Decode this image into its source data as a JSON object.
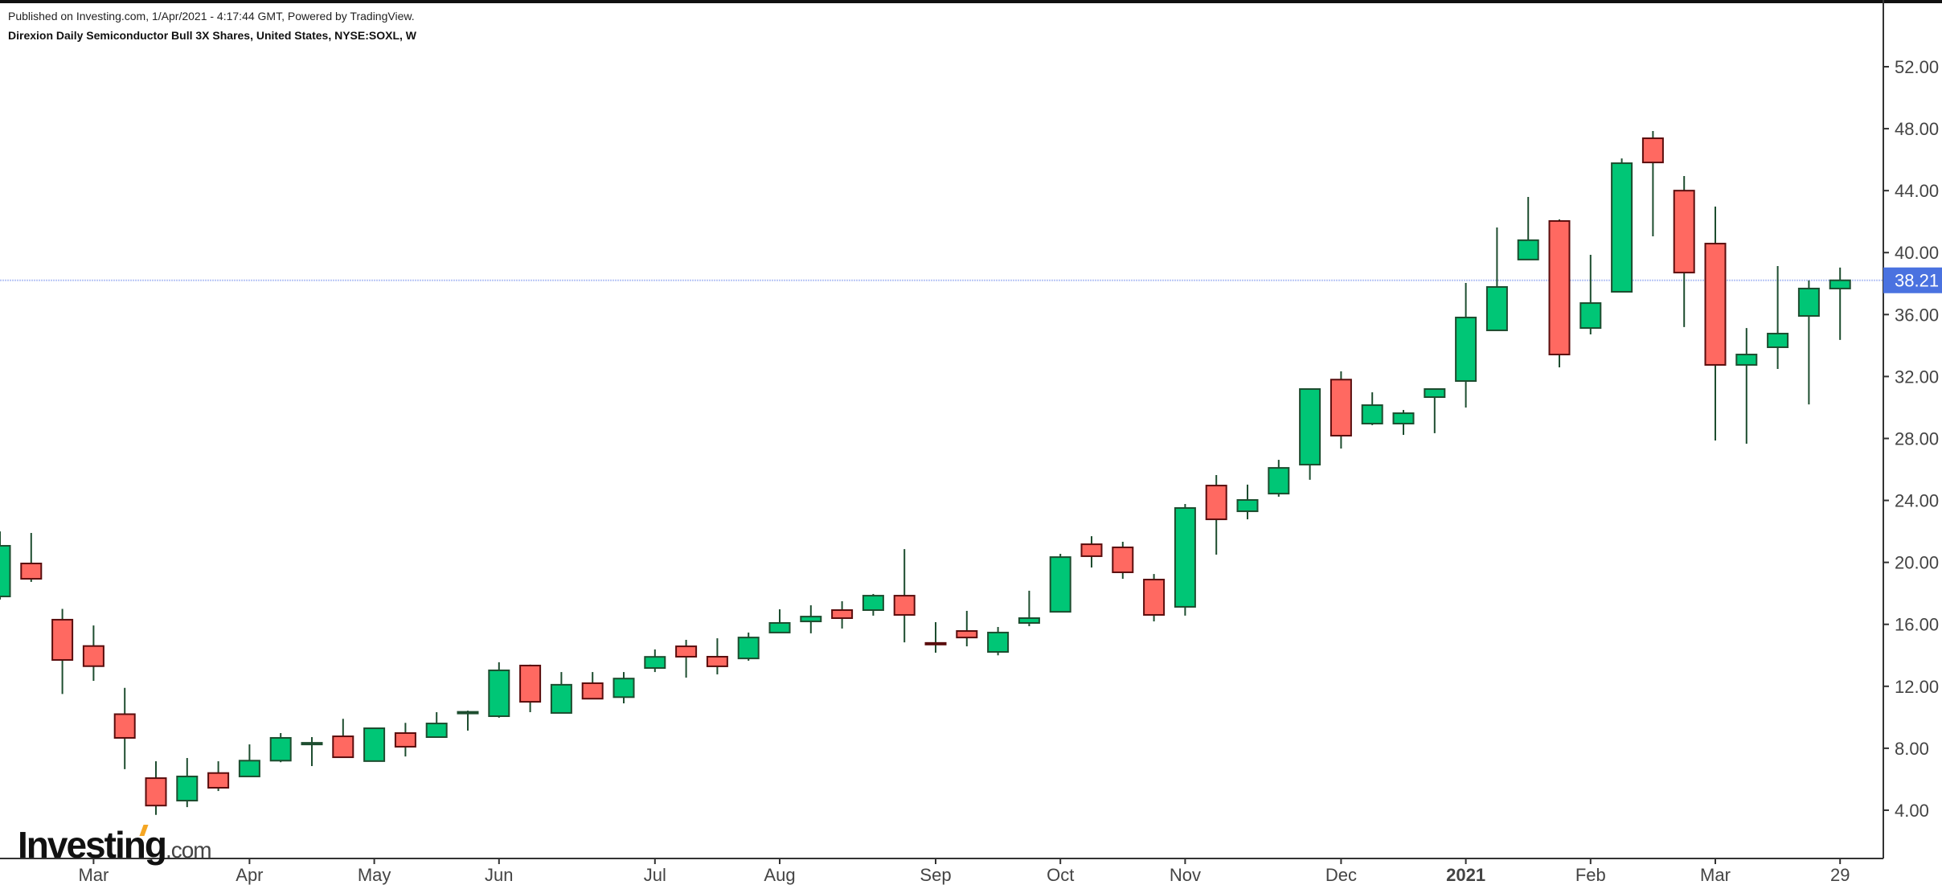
{
  "header": {
    "published": "Published on Investing.com, 1/Apr/2021 - 4:17:44 GMT, Powered by TradingView.",
    "title": "Direxion Daily Semiconductor Bull 3X Shares, United States, NYSE:SOXL, W"
  },
  "logo": {
    "main": "Investing",
    "suffix": ".com"
  },
  "colors": {
    "up": "#00c676",
    "down": "#ff6961",
    "up_border": "#1d4d2f",
    "down_border": "#5a0d0d",
    "price_tag": "#4a72e0",
    "price_line": "#b8c6f5"
  },
  "chart_data": {
    "type": "candlestick",
    "title": "Direxion Daily Semiconductor Bull 3X Shares, United States, NYSE:SOXL, W",
    "interval": "weekly",
    "ylim": [
      0.8,
      54.5
    ],
    "yticks": [
      "4.00",
      "8.00",
      "12.00",
      "16.00",
      "20.00",
      "24.00",
      "28.00",
      "32.00",
      "36.00",
      "40.00",
      "44.00",
      "48.00",
      "52.00"
    ],
    "ytick_values": [
      4,
      8,
      12,
      16,
      20,
      24,
      28,
      32,
      36,
      40,
      44,
      48,
      52
    ],
    "xticks": [
      {
        "label": "Mar",
        "index": 3
      },
      {
        "label": "Apr",
        "index": 8
      },
      {
        "label": "May",
        "index": 12
      },
      {
        "label": "Jun",
        "index": 16
      },
      {
        "label": "Jul",
        "index": 21
      },
      {
        "label": "Aug",
        "index": 25
      },
      {
        "label": "Sep",
        "index": 30
      },
      {
        "label": "Oct",
        "index": 34
      },
      {
        "label": "Nov",
        "index": 38
      },
      {
        "label": "Dec",
        "index": 43
      },
      {
        "label": "2021",
        "index": 47,
        "bold": true
      },
      {
        "label": "Feb",
        "index": 51
      },
      {
        "label": "Mar",
        "index": 55
      },
      {
        "label": "29",
        "index": 59
      }
    ],
    "last_price": 38.21,
    "last_price_label": "38.21",
    "ohlc_fields": [
      "open",
      "high",
      "low",
      "close"
    ],
    "ohlc": [
      [
        17.8,
        22.0,
        17.6,
        21.07
      ],
      [
        19.93,
        21.9,
        18.74,
        18.94
      ],
      [
        16.3,
        17.0,
        11.5,
        13.7
      ],
      [
        14.6,
        15.93,
        12.35,
        13.3
      ],
      [
        10.2,
        11.9,
        6.65,
        8.67
      ],
      [
        6.07,
        7.16,
        3.7,
        4.3
      ],
      [
        4.62,
        7.37,
        4.2,
        6.18
      ],
      [
        6.4,
        7.16,
        5.24,
        5.45
      ],
      [
        6.18,
        8.25,
        6.18,
        7.2
      ],
      [
        7.2,
        8.98,
        7.1,
        8.67
      ],
      [
        8.25,
        8.72,
        6.85,
        8.35
      ],
      [
        8.77,
        9.9,
        7.42,
        7.42
      ],
      [
        7.17,
        9.29,
        7.17,
        9.29
      ],
      [
        8.98,
        9.64,
        7.47,
        8.1
      ],
      [
        8.72,
        10.33,
        8.72,
        9.6
      ],
      [
        10.3,
        10.43,
        9.14,
        10.35
      ],
      [
        10.07,
        13.55,
        9.97,
        13.03
      ],
      [
        13.34,
        13.4,
        10.33,
        11.0
      ],
      [
        10.28,
        12.92,
        10.28,
        12.1
      ],
      [
        12.2,
        12.92,
        11.2,
        11.2
      ],
      [
        11.3,
        12.92,
        10.9,
        12.5
      ],
      [
        13.18,
        14.38,
        12.92,
        13.9
      ],
      [
        14.58,
        15.0,
        12.56,
        13.91
      ],
      [
        13.91,
        15.1,
        12.77,
        13.29
      ],
      [
        13.8,
        15.47,
        13.65,
        15.15
      ],
      [
        15.47,
        16.97,
        15.47,
        16.09
      ],
      [
        16.19,
        17.23,
        15.42,
        16.5
      ],
      [
        16.92,
        17.49,
        15.73,
        16.4
      ],
      [
        16.92,
        17.96,
        16.56,
        17.85
      ],
      [
        17.85,
        20.86,
        14.84,
        16.61
      ],
      [
        14.8,
        16.14,
        14.17,
        14.7
      ],
      [
        15.57,
        16.87,
        14.58,
        15.15
      ],
      [
        14.22,
        15.83,
        14.0,
        15.47
      ],
      [
        16.09,
        18.17,
        15.88,
        16.4
      ],
      [
        16.81,
        20.55,
        16.81,
        20.34
      ],
      [
        21.17,
        21.69,
        19.67,
        20.4
      ],
      [
        20.97,
        21.33,
        18.94,
        19.36
      ],
      [
        18.89,
        19.25,
        16.19,
        16.61
      ],
      [
        17.13,
        23.77,
        16.56,
        23.51
      ],
      [
        24.96,
        25.64,
        20.5,
        22.78
      ],
      [
        23.3,
        25.02,
        22.78,
        24.03
      ],
      [
        24.44,
        26.62,
        24.24,
        26.1
      ],
      [
        26.31,
        31.2,
        25.33,
        31.19
      ],
      [
        31.8,
        32.33,
        27.35,
        28.18
      ],
      [
        28.96,
        30.98,
        28.86,
        30.15
      ],
      [
        28.96,
        29.84,
        28.23,
        29.63
      ],
      [
        30.67,
        31.2,
        28.34,
        31.19
      ],
      [
        31.71,
        38.04,
        30.0,
        35.81
      ],
      [
        34.98,
        41.62,
        34.98,
        37.78
      ],
      [
        39.55,
        43.59,
        39.55,
        40.8
      ],
      [
        42.04,
        42.14,
        32.59,
        33.42
      ],
      [
        35.13,
        39.86,
        34.72,
        36.74
      ],
      [
        37.47,
        46.08,
        37.47,
        45.77
      ],
      [
        47.38,
        47.85,
        41.05,
        45.82
      ],
      [
        44.0,
        44.94,
        35.19,
        38.71
      ],
      [
        40.58,
        42.97,
        27.87,
        32.75
      ],
      [
        32.75,
        35.13,
        27.66,
        33.42
      ],
      [
        33.89,
        39.13,
        32.49,
        34.77
      ],
      [
        35.91,
        38.2,
        30.2,
        37.68
      ],
      [
        37.68,
        39.03,
        34.36,
        38.21
      ]
    ]
  }
}
